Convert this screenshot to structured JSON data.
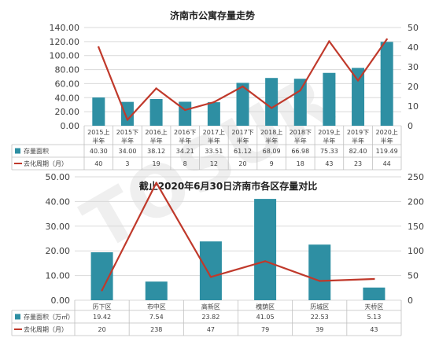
{
  "chart_data": [
    {
      "type": "bar",
      "title": "济南市公寓存量走势",
      "categories": [
        "2015上半年",
        "2015下半年",
        "2016上半年",
        "2016下半年",
        "2017上半年",
        "2017下半年",
        "2018上半年",
        "2018下半年",
        "2019上半年",
        "2019下半年",
        "2020上半年"
      ],
      "category_lines": [
        [
          "2015上",
          "半年"
        ],
        [
          "2015下",
          "半年"
        ],
        [
          "2016上",
          "半年"
        ],
        [
          "2016下",
          "半年"
        ],
        [
          "2017上",
          "半年"
        ],
        [
          "2017下",
          "半年"
        ],
        [
          "2018上",
          "半年"
        ],
        [
          "2018下",
          "半年"
        ],
        [
          "2019上",
          "半年"
        ],
        [
          "2019下",
          "半年"
        ],
        [
          "2020上",
          "半年"
        ]
      ],
      "series": [
        {
          "name": "存量面积",
          "type": "bar",
          "axis": "left",
          "color": "#2e8fa3",
          "values": [
            40.3,
            34.0,
            38.12,
            34.21,
            33.51,
            61.12,
            68.09,
            66.98,
            75.33,
            82.4,
            119.49
          ],
          "labels": [
            "40.30",
            "34.00",
            "38.12",
            "34.21",
            "33.51",
            "61.12",
            "68.09",
            "66.98",
            "75.33",
            "82.40",
            "119.49"
          ]
        },
        {
          "name": "去化周期（月）",
          "type": "line",
          "axis": "right",
          "color": "#c0392b",
          "values": [
            40,
            3,
            19,
            8,
            12,
            20,
            9,
            18,
            43,
            23,
            44
          ],
          "labels": [
            "40",
            "3",
            "19",
            "8",
            "12",
            "20",
            "9",
            "18",
            "43",
            "23",
            "44"
          ]
        }
      ],
      "ylim_left": [
        0,
        140
      ],
      "yticks_left": [
        "0.00",
        "20.00",
        "40.00",
        "60.00",
        "80.00",
        "100.00",
        "120.00",
        "140.00"
      ],
      "ylim_right": [
        0,
        50
      ],
      "yticks_right": [
        "0",
        "10",
        "20",
        "30",
        "40",
        "50"
      ],
      "legend": "table-below",
      "grid": true
    },
    {
      "type": "bar",
      "title": "截止2020年6月30日济南市各区存量对比",
      "categories": [
        "历下区",
        "市中区",
        "高新区",
        "槐荫区",
        "历城区",
        "天桥区"
      ],
      "series": [
        {
          "name": "存量面积（万㎡）",
          "type": "bar",
          "axis": "left",
          "color": "#2e8fa3",
          "values": [
            19.42,
            7.54,
            23.82,
            41.05,
            22.53,
            5.13
          ],
          "labels": [
            "19.42",
            "7.54",
            "23.82",
            "41.05",
            "22.53",
            "5.13"
          ]
        },
        {
          "name": "去化周期（月）",
          "type": "line",
          "axis": "right",
          "color": "#c0392b",
          "values": [
            20,
            238,
            47,
            79,
            39,
            43
          ],
          "labels": [
            "20",
            "238",
            "47",
            "79",
            "39",
            "43"
          ]
        }
      ],
      "ylim_left": [
        0,
        50
      ],
      "yticks_left": [
        "0.00",
        "10.00",
        "20.00",
        "30.00",
        "40.00",
        "50.00"
      ],
      "ylim_right": [
        0,
        250
      ],
      "yticks_right": [
        "0",
        "50",
        "100",
        "150",
        "200",
        "250"
      ],
      "legend": "table-below",
      "grid": true
    }
  ],
  "watermark": "TOSUR"
}
